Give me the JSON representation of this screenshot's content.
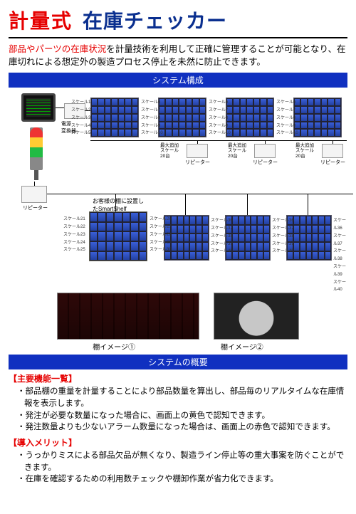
{
  "title": {
    "part1": "計量式",
    "part2": "在庫チェッカー"
  },
  "intro": {
    "emphasis": "部品やパーツの在庫状況",
    "rest": "を計量技術を利用して正確に管理することが可能となり、在庫切れによる想定外の製造プロセス停止を未然に防止できます。"
  },
  "bars": {
    "config": "システム構成",
    "overview": "システムの概要"
  },
  "diagram": {
    "psu_label": "電源\n変換器",
    "repeater_label": "リピーター",
    "add_label": "最大追加\nスケール\n20台",
    "smartshelf_caption": "お客様の棚に設置し\nたSmartShelf",
    "scale_top_left": [
      "スケール1",
      "スケール2",
      "スケール3",
      "スケール4",
      "スケール5"
    ],
    "scale_top_right": [
      "スケール6",
      "スケール7",
      "スケール8",
      "スケール9",
      "スケール10"
    ],
    "scale_bot_left": [
      "スケール21",
      "スケール22",
      "スケール23",
      "スケール24",
      "スケール25"
    ],
    "scale_bot_right": [
      "スケール26",
      "スケール27",
      "スケール28",
      "スケール29",
      "スケール30"
    ],
    "scale_lower_r": [
      "スケール36",
      "スケール37",
      "スケール38",
      "スケール39",
      "スケール40"
    ]
  },
  "photos": {
    "label1": "棚イメージ①",
    "label2": "棚イメージ②"
  },
  "features": {
    "heading": "【主要機能一覧】",
    "items": [
      "部品棚の重量を計量することにより部品数量を算出し、部品毎のリアルタイムな在庫情報を表示します。",
      "発注が必要な数量になった場合に、画面上の黄色で認知できます。",
      "発注数量よりも少ないアラーム数量になった場合は、画面上の赤色で認知できます。"
    ]
  },
  "merits": {
    "heading": "【導入メリット】",
    "items": [
      "うっかりミスによる部品欠品が無くなり、製造ライン停止等の重大事案を防ぐことができます。",
      "在庫を確認するための利用数チェックや棚卸作業が省力化できます。"
    ]
  },
  "colors": {
    "title_red": "#e60000",
    "title_blue": "#0a2f8f",
    "bar_blue": "#1030c0",
    "bin_blue": "#2340a0"
  }
}
